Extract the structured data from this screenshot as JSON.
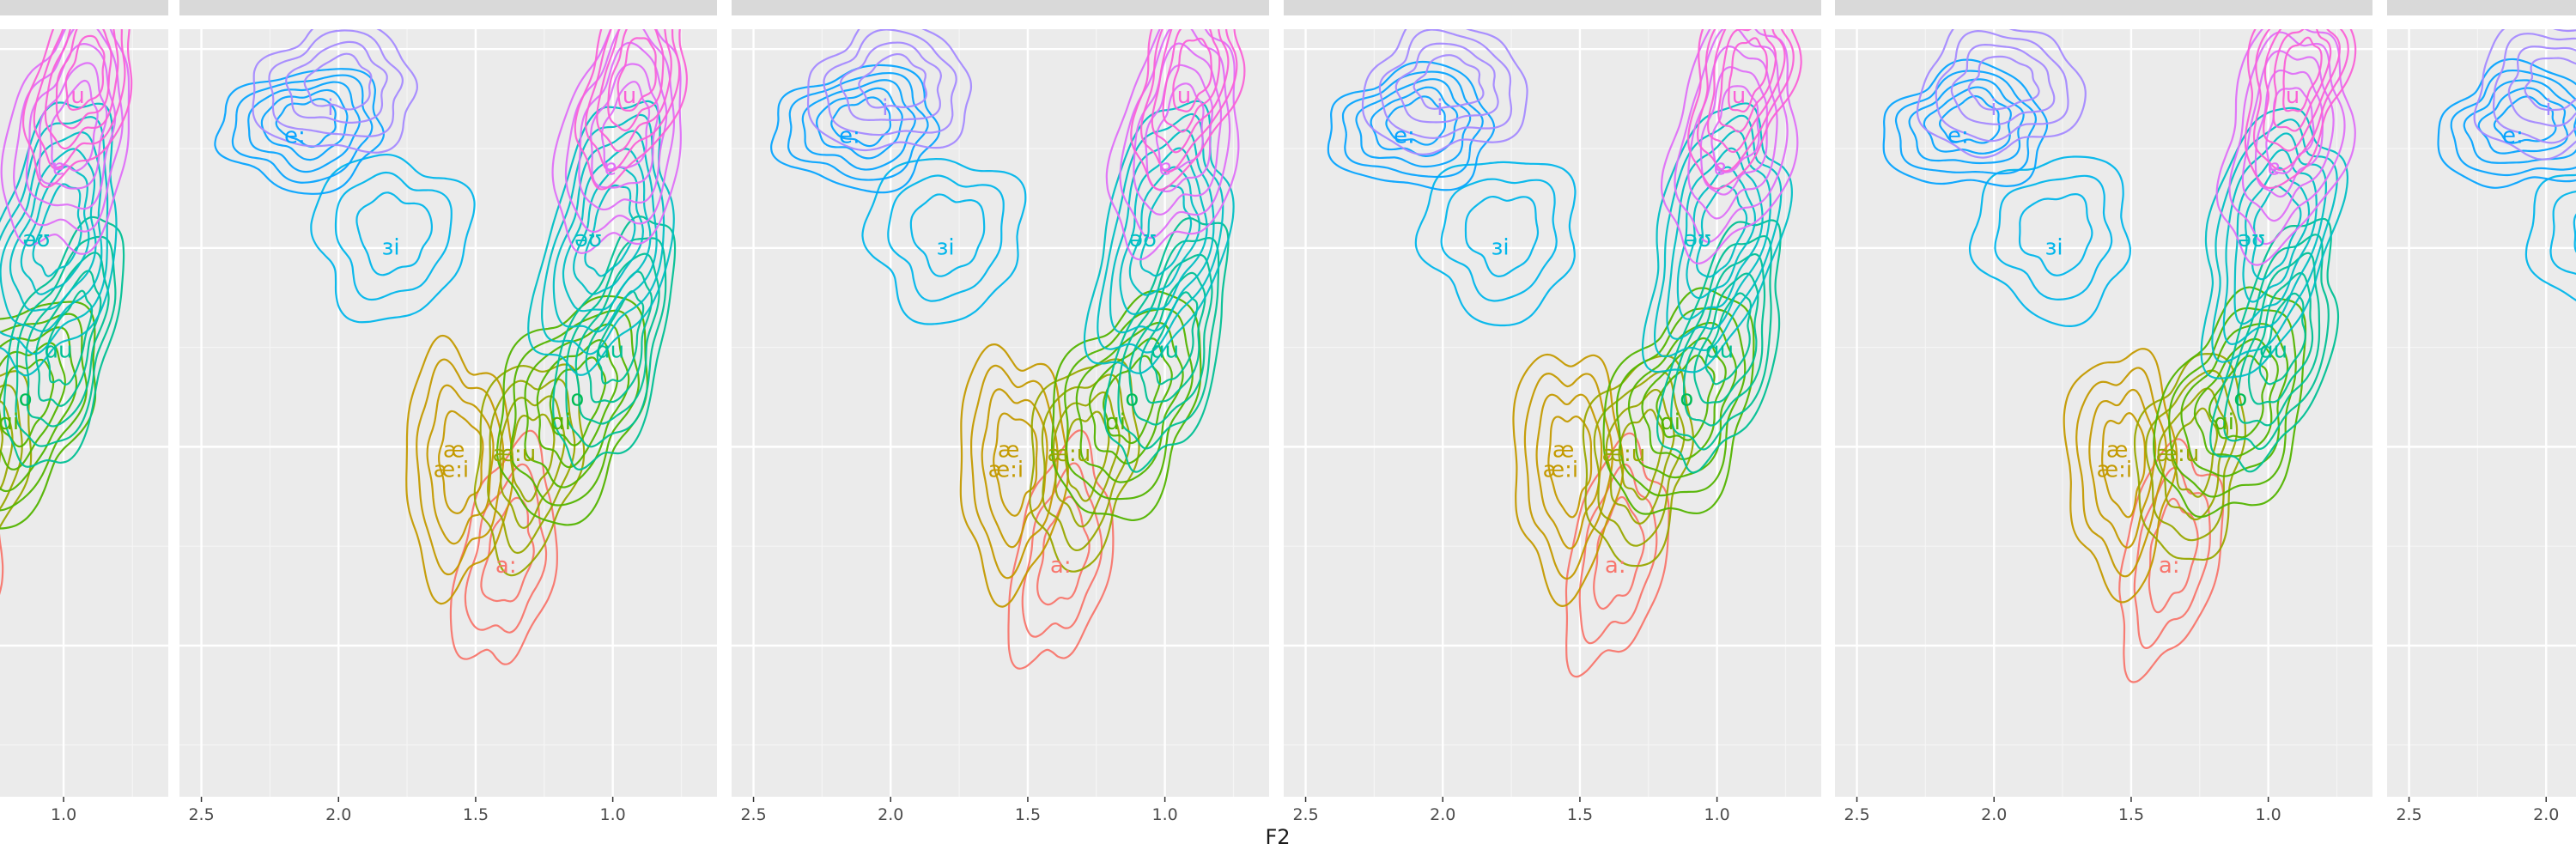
{
  "chart_data": {
    "type": "contour",
    "xlabel": "F2",
    "x_reversed": true,
    "xlim": [
      2.58,
      0.62
    ],
    "x_ticks": [
      2.5,
      2.0,
      1.5,
      1.0
    ],
    "x_tick_labels": [
      "2.5",
      "2.0",
      "1.5",
      "1.0"
    ],
    "panels_visible": [
      "partial",
      "full",
      "full",
      "full",
      "full",
      "partial"
    ],
    "grid": true,
    "panel_background": "#ebebeb",
    "colors": {
      "a:": "#f8766d",
      "ae": "#c49a00",
      "ae:i": "#c49a00",
      "ae:u": "#99a800",
      "ai": "#53b400",
      "o": "#00bc56",
      "ou": "#00c094",
      "au": "#00bfc4",
      "3i": "#00b6eb",
      "e:": "#06a4ff",
      "i": "#a58aff",
      "eo": "#df70f8",
      "u": "#fb61d7",
      "ui": "#ff66a8"
    },
    "vowel_labels": [
      {
        "id": "a:",
        "text": "a:",
        "color": "#f8766d"
      },
      {
        "id": "ae",
        "text": "æ",
        "color": "#c49a00"
      },
      {
        "id": "ae:i",
        "text": "æ:i",
        "color": "#c49a00"
      },
      {
        "id": "ae:u",
        "text": "æ:u",
        "color": "#99a800"
      },
      {
        "id": "ai",
        "text": "ɑi",
        "color": "#53b400"
      },
      {
        "id": "o",
        "text": "o",
        "color": "#00bc56"
      },
      {
        "id": "ou",
        "text": "ɑu",
        "color": "#00c094"
      },
      {
        "id": "au",
        "text": "əʊ",
        "color": "#00bfc4"
      },
      {
        "id": "3i",
        "text": "ɜi",
        "color": "#00b6eb"
      },
      {
        "id": "e:",
        "text": "e:",
        "color": "#06a4ff"
      },
      {
        "id": "i",
        "text": "i",
        "color": "#a58aff"
      },
      {
        "id": "eo",
        "text": "ɐ",
        "color": "#df70f8"
      },
      {
        "id": "u",
        "text": "u",
        "color": "#fb61d7"
      }
    ],
    "vowels": [
      {
        "id": "a:",
        "color": "#f8766d",
        "center": [
          1.38,
          -0.28
        ]
      },
      {
        "id": "ae",
        "color": "#c49a00",
        "center": [
          1.56,
          -0.05
        ]
      },
      {
        "id": "ae:u",
        "color": "#99a800",
        "center": [
          1.3,
          -0.03
        ]
      },
      {
        "id": "ai",
        "color": "#53b400",
        "center": [
          1.14,
          0.1
        ]
      },
      {
        "id": "ou",
        "color": "#00c094",
        "center": [
          0.98,
          0.25
        ]
      },
      {
        "id": "au",
        "color": "#00bfc4",
        "center": [
          1.02,
          0.52
        ]
      },
      {
        "id": "3i",
        "color": "#00b6eb",
        "center": [
          1.8,
          0.53
        ]
      },
      {
        "id": "e:",
        "color": "#06a4ff",
        "center": [
          2.12,
          0.8
        ]
      },
      {
        "id": "i",
        "color": "#a58aff",
        "center": [
          2.0,
          0.9
        ]
      },
      {
        "id": "eo",
        "color": "#df70f8",
        "center": [
          0.96,
          0.78
        ]
      },
      {
        "id": "u",
        "color": "#fb61d7",
        "center": [
          0.92,
          0.92
        ]
      }
    ]
  }
}
